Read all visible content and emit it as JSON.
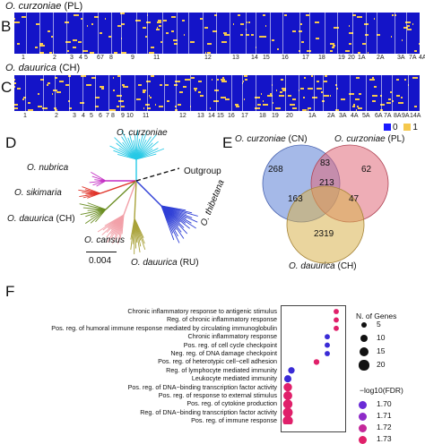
{
  "panel_b": {
    "letter": "B",
    "species": "O. curzoniae",
    "population": "(PL)",
    "chromosomes": [
      "1",
      "2",
      "3",
      "4",
      "5",
      "6",
      "7",
      "8",
      "9",
      "11",
      "12",
      "13",
      "14",
      "15",
      "16",
      "17",
      "18",
      "19",
      "20",
      "1A",
      "2A",
      "3A",
      "7A",
      "4A"
    ]
  },
  "panel_c": {
    "letter": "C",
    "species": "O. dauurica",
    "population": "(CH)",
    "chromosomes": [
      "1",
      "2",
      "3",
      "4",
      "5",
      "6",
      "7",
      "8",
      "9",
      "10",
      "11",
      "12",
      "13",
      "14",
      "15",
      "16",
      "17",
      "18",
      "19",
      "20",
      "1A",
      "2A",
      "3A",
      "4A",
      "5A",
      "6A",
      "7A",
      "8A",
      "9A",
      "14A"
    ]
  },
  "heatmap_legend": {
    "items": [
      {
        "label": "0",
        "color": "#1a1aff"
      },
      {
        "label": "1",
        "color": "#f5c84c"
      }
    ]
  },
  "panel_d": {
    "letter": "D",
    "labels": {
      "curzoniae": "O. curzoniae",
      "nubrica": "O. nubrica",
      "sikimaria": "O. sikimaria",
      "dauurica_ch_species": "O. dauurica",
      "dauurica_ch_pop": "(CH)",
      "cansus": "O. cansus",
      "dauurica_ru_species": "O. dauurica",
      "dauurica_ru_pop": "(RU)",
      "thibetana": "O. thibetana",
      "outgroup": "Outgroup"
    },
    "scale": "0.004",
    "colors": {
      "curzoniae": "#27c9e6",
      "nubrica": "#c42fc4",
      "sikimaria": "#e0342a",
      "dauurica_ch": "#6b8e23",
      "cansus": "#f2a0a8",
      "dauurica_ru": "#a9a23a",
      "thibetana": "#2f3fd6",
      "outgroup": "#111111"
    }
  },
  "panel_e": {
    "letter": "E",
    "sets": [
      {
        "species": "O. curzoniae",
        "pop": "(CN)",
        "color": "#5b7fd6"
      },
      {
        "species": "O. curzoniae",
        "pop": "(PL)",
        "color": "#e06a7a"
      },
      {
        "species": "O. dauurica",
        "pop": "(CH)",
        "color": "#d9b24e"
      }
    ],
    "counts": {
      "cn_only": "268",
      "pl_only": "62",
      "ch_only": "2319",
      "cn_pl": "83",
      "cn_ch": "163",
      "pl_ch": "47",
      "all": "213"
    }
  },
  "panel_f": {
    "letter": "F",
    "terms": [
      "Chronic inflammatory response to antigenic stimulus",
      "Reg. of chronic inflammatory response",
      "Pos. reg. of humoral immune response mediated by circulating immunoglobulin",
      "Chronic inflammatory response",
      "Pos. reg. of cell cycle checkpoint",
      "Neg. reg. of DNA damage checkpoint",
      "Pos. reg. of heterotypic cell−cell adhesion",
      "Reg. of lymphocyte mediated immunity",
      "Leukocyte mediated immunity",
      "Pos. reg. of DNA−binding transcription factor activity",
      "Pos. reg. of response to external stimulus",
      "Pos. reg. of cytokine production",
      "Reg. of DNA−binding transcription factor activity",
      "Pos. reg. of immune response"
    ],
    "legend_size_title": "N. of Genes",
    "legend_sizes": [
      "5",
      "10",
      "15",
      "20"
    ],
    "legend_color_title": "−log10(FDR)",
    "legend_colors": [
      {
        "label": "1.70",
        "color": "#6a2bd6"
      },
      {
        "label": "1.71",
        "color": "#8e2bc8"
      },
      {
        "label": "1.72",
        "color": "#c4289a"
      },
      {
        "label": "1.73",
        "color": "#e0206a"
      }
    ]
  },
  "chart_data": {
    "type": "scatter",
    "title": "",
    "xlabel": "",
    "ylabel": "",
    "categories": [
      "Chronic inflammatory response to antigenic stimulus",
      "Reg. of chronic inflammatory response",
      "Pos. reg. of humoral immune response mediated by circulating immunoglobulin",
      "Chronic inflammatory response",
      "Pos. reg. of cell cycle checkpoint",
      "Neg. reg. of DNA damage checkpoint",
      "Pos. reg. of heterotypic cell−cell adhesion",
      "Reg. of lymphocyte mediated immunity",
      "Leukocyte mediated immunity",
      "Pos. reg. of DNA−binding transcription factor activity",
      "Pos. reg. of response to external stimulus",
      "Pos. reg. of cytokine production",
      "Reg. of DNA−binding transcription factor activity",
      "Pos. reg. of immune response"
    ],
    "x": [
      0.145,
      0.145,
      0.145,
      0.12,
      0.12,
      0.12,
      0.09,
      0.02,
      0.01,
      0.01,
      0.01,
      0.01,
      0.01,
      0.01
    ],
    "n_genes": [
      3,
      3,
      3,
      3,
      3,
      3,
      4,
      6,
      8,
      12,
      14,
      16,
      18,
      20
    ],
    "fdr": [
      1.73,
      1.73,
      1.73,
      1.7,
      1.7,
      1.7,
      1.73,
      1.7,
      1.7,
      1.73,
      1.73,
      1.73,
      1.73,
      1.73
    ]
  }
}
